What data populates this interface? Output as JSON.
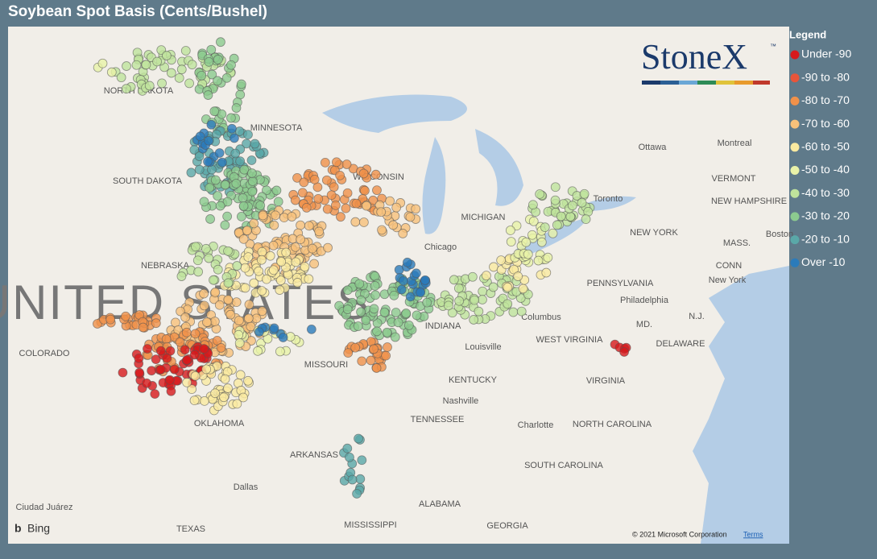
{
  "header": {
    "title": "Soybean Spot Basis (Cents/Bushel)"
  },
  "brand": {
    "name": "StoneX",
    "mark": "™"
  },
  "legend": {
    "title": "Legend",
    "items": [
      {
        "label": "Under -90",
        "color": "#d7191c"
      },
      {
        "label": "-90 to -80",
        "color": "#e8553a"
      },
      {
        "label": "-80 to -70",
        "color": "#f0914a"
      },
      {
        "label": "-70 to -60",
        "color": "#f7c17a"
      },
      {
        "label": "-60 to -50",
        "color": "#faeaa0"
      },
      {
        "label": "-50 to -40",
        "color": "#e9f2a8"
      },
      {
        "label": "-40 to -30",
        "color": "#bfe39c"
      },
      {
        "label": "-30 to -20",
        "color": "#8ccb8f"
      },
      {
        "label": "-20 to -10",
        "color": "#5aa8a8"
      },
      {
        "label": "Over -10",
        "color": "#2b7bba"
      }
    ]
  },
  "map": {
    "labels": [
      "NORTH DAKOTA",
      "MINNESOTA",
      "SOUTH DAKOTA",
      "WISCONSIN",
      "MICHIGAN",
      "NEBRASKA",
      "UNITED STATES",
      "Chicago",
      "INDIANA",
      "Ottawa",
      "Montreal",
      "VERMONT",
      "NEW HAMPSHIRE",
      "NEW YORK",
      "MASS.",
      "Boston",
      "CONN",
      "New York",
      "PENNSYLVANIA",
      "Philadelphia",
      "N.J.",
      "MD.",
      "DELAWARE",
      "Columbus",
      "WEST VIRGINIA",
      "VIRGINIA",
      "Louisville",
      "KENTUCKY",
      "Nashville",
      "TENNESSEE",
      "Charlotte",
      "NORTH CAROLINA",
      "SOUTH CAROLINA",
      "GEORGIA",
      "ALABAMA",
      "MISSISSIPPI",
      "ARKANSAS",
      "MISSOURI",
      "OKLAHOMA",
      "Dallas",
      "TEXAS",
      "COLORADO",
      "Ciudad Juárez",
      "Toronto"
    ],
    "provider": "Bing",
    "copyright": "© 2021 Microsoft Corporation",
    "terms": "Terms"
  }
}
